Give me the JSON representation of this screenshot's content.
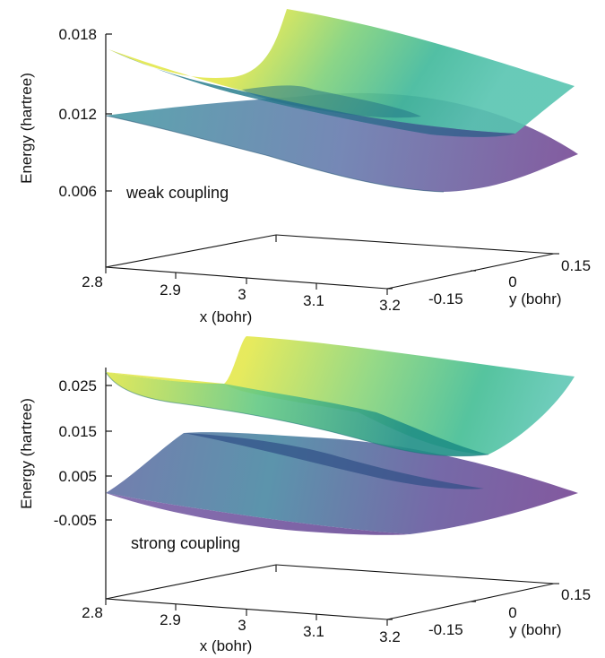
{
  "chart_data": [
    {
      "type": "surface",
      "annotation": "weak coupling",
      "zlabel": "Energy (hartree)",
      "xlabel": "x (bohr)",
      "ylabel": "y (bohr)",
      "x_ticks": [
        "2.8",
        "2.9",
        "3",
        "3.1",
        "3.2"
      ],
      "y_ticks": [
        "-0.15",
        "0",
        "0.15"
      ],
      "z_ticks": [
        "0.006",
        "0.012",
        "0.018"
      ],
      "xlim": [
        2.8,
        3.2
      ],
      "ylim": [
        -0.15,
        0.15
      ],
      "zlim": [
        0.0,
        0.018
      ],
      "colormap": [
        "#440154",
        "#3b528b",
        "#21918c",
        "#5ec962",
        "#fde725"
      ],
      "series": [
        {
          "corners": {
            "x2.8_y-0.15": 0.0131,
            "x3.2_y-0.15": 0.0103,
            "x2.8_y0.15": 0.0121,
            "x3.2_y0.15": 0.0125
          },
          "min": 0.0081
        },
        {
          "corners": {
            "x2.8_y-0.15": 0.017,
            "x3.2_y-0.15": 0.015,
            "x2.8_y0.15": 0.0195,
            "x3.2_y0.15": 0.0165
          },
          "min": 0.012
        }
      ]
    },
    {
      "type": "surface",
      "annotation": "strong coupling",
      "zlabel": "Energy (hartree)",
      "xlabel": "x (bohr)",
      "ylabel": "y (bohr)",
      "x_ticks": [
        "2.8",
        "2.9",
        "3",
        "3.1",
        "3.2"
      ],
      "y_ticks": [
        "-0.15",
        "0",
        "0.15"
      ],
      "z_ticks": [
        "-0.005",
        "0.005",
        "0.015",
        "0.025"
      ],
      "xlim": [
        2.8,
        3.2
      ],
      "ylim": [
        -0.15,
        0.15
      ],
      "zlim": [
        -0.015,
        0.035
      ],
      "colormap": [
        "#440154",
        "#3b528b",
        "#21918c",
        "#5ec962",
        "#fde725"
      ],
      "series": [
        {
          "corners": {
            "x2.8_y-0.15": 0.006,
            "x3.2_y-0.15": 0.002,
            "x2.8_y0.15": 0.016,
            "x3.2_y0.15": 0.013
          },
          "min": -0.005
        },
        {
          "corners": {
            "x2.8_y-0.15": 0.026,
            "x3.2_y-0.15": 0.019,
            "x2.8_y0.15": 0.034,
            "x3.2_y0.15": 0.029
          },
          "min": 0.01
        }
      ]
    }
  ]
}
